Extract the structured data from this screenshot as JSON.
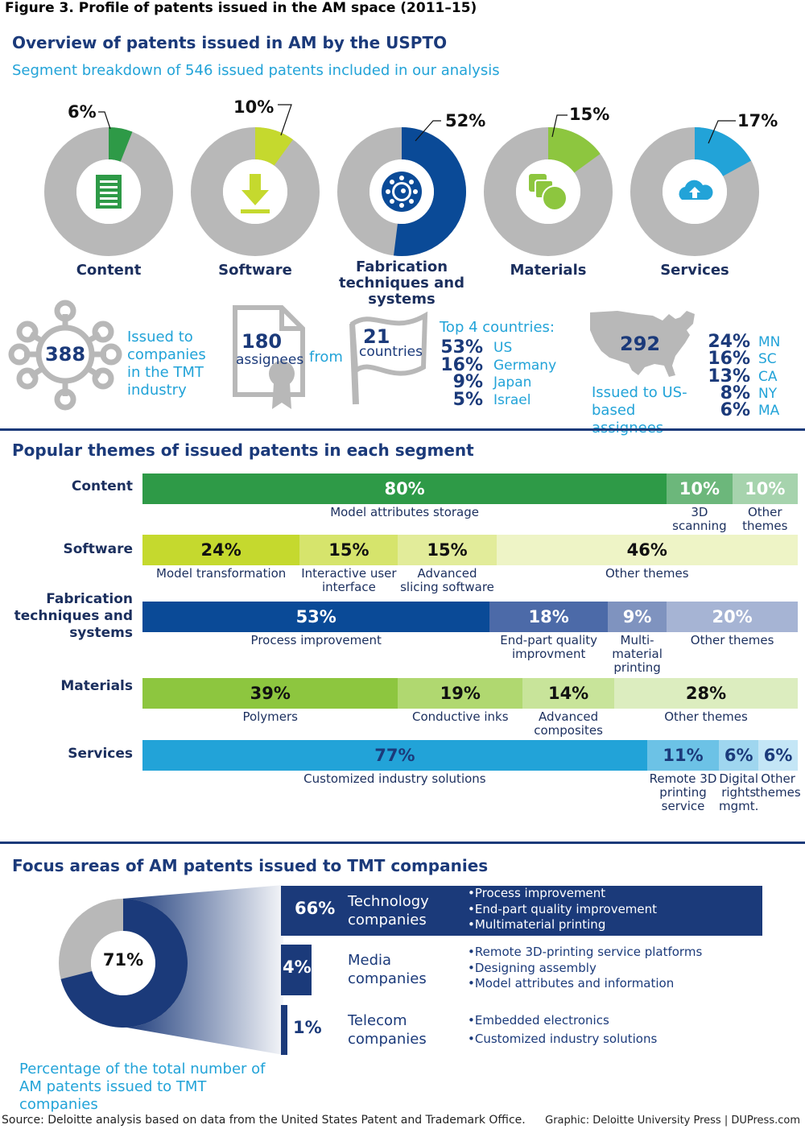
{
  "figure_title": "Figure 3. Profile of patents issued in the AM space (2011–15)",
  "overview": {
    "heading": "Overview of patents issued in AM by the USPTO",
    "subheading": "Segment breakdown of 546 issued patents included in our analysis",
    "segments": [
      {
        "label": "Content",
        "pct_text": "6%",
        "value": 6,
        "color": "#2e9a47",
        "icon": "document-icon"
      },
      {
        "label": "Software",
        "pct_text": "10%",
        "value": 10,
        "color": "#c5d92e",
        "icon": "download-icon"
      },
      {
        "label": "Fabrication techniques and systems",
        "pct_text": "52%",
        "value": 52,
        "color": "#0a4a97",
        "icon": "gear-icon"
      },
      {
        "label": "Materials",
        "pct_text": "15%",
        "value": 15,
        "color": "#8dc63f",
        "icon": "shapes-icon"
      },
      {
        "label": "Services",
        "pct_text": "17%",
        "value": 17,
        "color": "#22a3d8",
        "icon": "cloud-upload-icon"
      }
    ]
  },
  "stats": {
    "tmt_count": "388",
    "tmt_text": "Issued to companies in the TMT industry",
    "assignees_count": "180",
    "assignees_label": "assignees",
    "from_text": "from",
    "countries_count": "21",
    "countries_label": "countries",
    "top_countries_title": "Top 4 countries:",
    "top_countries": [
      {
        "pct": "53%",
        "name": "US"
      },
      {
        "pct": "16%",
        "name": "Germany"
      },
      {
        "pct": "9%",
        "name": "Japan"
      },
      {
        "pct": "5%",
        "name": "Israel"
      }
    ],
    "us_count": "292",
    "us_text": "Issued to US-based assignees",
    "top_states": [
      {
        "pct": "24%",
        "name": "MN"
      },
      {
        "pct": "16%",
        "name": "SC"
      },
      {
        "pct": "13%",
        "name": "CA"
      },
      {
        "pct": "8%",
        "name": "NY"
      },
      {
        "pct": "6%",
        "name": "MA"
      }
    ]
  },
  "themes": {
    "heading": "Popular themes of issued patents in each segment",
    "rows": [
      {
        "label": "Content",
        "items": [
          {
            "value": 80,
            "text": "80%",
            "caption": "Model attributes storage",
            "color": "#2e9a47",
            "fg": "#ffffff"
          },
          {
            "value": 10,
            "text": "10%",
            "caption": "3D scanning",
            "color": "#6cb77b",
            "fg": "#ffffff"
          },
          {
            "value": 10,
            "text": "10%",
            "caption": "Other themes",
            "color": "#a6d3ad",
            "fg": "#ffffff"
          }
        ]
      },
      {
        "label": "Software",
        "items": [
          {
            "value": 24,
            "text": "24%",
            "caption": "Model transformation",
            "color": "#c5d92e",
            "fg": "#111111"
          },
          {
            "value": 15,
            "text": "15%",
            "caption": "Interactive user interface",
            "color": "#d6e46c",
            "fg": "#111111"
          },
          {
            "value": 15,
            "text": "15%",
            "caption": "Advanced slicing software",
            "color": "#e2ec9a",
            "fg": "#111111"
          },
          {
            "value": 46,
            "text": "46%",
            "caption": "Other themes",
            "color": "#eef4c6",
            "fg": "#111111"
          }
        ]
      },
      {
        "label": "Fabrication techniques and systems",
        "items": [
          {
            "value": 53,
            "text": "53%",
            "caption": "Process improvement",
            "color": "#0a4a97",
            "fg": "#ffffff"
          },
          {
            "value": 18,
            "text": "18%",
            "caption": "End-part quality improvment",
            "color": "#4c6aa8",
            "fg": "#ffffff"
          },
          {
            "value": 9,
            "text": "9%",
            "caption": "Multi-material printing",
            "color": "#7f93bf",
            "fg": "#ffffff"
          },
          {
            "value": 20,
            "text": "20%",
            "caption": "Other themes",
            "color": "#a6b4d4",
            "fg": "#ffffff"
          }
        ]
      },
      {
        "label": "Materials",
        "items": [
          {
            "value": 39,
            "text": "39%",
            "caption": "Polymers",
            "color": "#8dc63f",
            "fg": "#111111"
          },
          {
            "value": 19,
            "text": "19%",
            "caption": "Conductive inks",
            "color": "#b0d870",
            "fg": "#111111"
          },
          {
            "value": 14,
            "text": "14%",
            "caption": "Advanced composites",
            "color": "#c8e49a",
            "fg": "#111111"
          },
          {
            "value": 28,
            "text": "28%",
            "caption": "Other themes",
            "color": "#dcedbf",
            "fg": "#111111"
          }
        ]
      },
      {
        "label": "Services",
        "items": [
          {
            "value": 77,
            "text": "77%",
            "caption": "Customized industry solutions",
            "color": "#22a3d8",
            "fg": "#1b3a7a"
          },
          {
            "value": 11,
            "text": "11%",
            "caption": "Remote 3D printing service",
            "color": "#6cc2e6",
            "fg": "#1b3a7a"
          },
          {
            "value": 6,
            "text": "6%",
            "caption": "Digital rights mgmt.",
            "color": "#9fd6ef",
            "fg": "#1b3a7a"
          },
          {
            "value": 6,
            "text": "6%",
            "caption": "Other themes",
            "color": "#c4e6f6",
            "fg": "#1b3a7a"
          }
        ]
      }
    ]
  },
  "focus": {
    "heading": "Focus areas of AM patents issued to TMT companies",
    "donut_pct": "71%",
    "donut_value": 71,
    "caption": "Percentage of the total number of AM patents issued to TMT companies",
    "groups": [
      {
        "pct": "66%",
        "value": 66,
        "name": "Technology companies",
        "bullets": [
          "Process improvement",
          "End-part quality improvement",
          "Multimaterial printing"
        ]
      },
      {
        "pct": "4%",
        "value": 4,
        "name": "Media companies",
        "bullets": [
          "Remote 3D-printing service platforms",
          "Designing assembly",
          "Model attributes and information"
        ]
      },
      {
        "pct": "1%",
        "value": 1,
        "name": "Telecom companies",
        "bullets": [
          "Embedded electronics",
          "Customized industry solutions"
        ]
      }
    ]
  },
  "chart_data": [
    {
      "type": "pie",
      "title": "Segment breakdown of 546 issued patents included in our analysis",
      "categories": [
        "Content",
        "Software",
        "Fabrication techniques and systems",
        "Materials",
        "Services"
      ],
      "values": [
        6,
        10,
        52,
        15,
        17
      ]
    },
    {
      "type": "bar",
      "title": "Popular themes of issued patents in each segment",
      "stacked": true,
      "orientation": "horizontal",
      "series": [
        {
          "name": "Content",
          "categories": [
            "Model attributes storage",
            "3D scanning",
            "Other themes"
          ],
          "values": [
            80,
            10,
            10
          ]
        },
        {
          "name": "Software",
          "categories": [
            "Model transformation",
            "Interactive user interface",
            "Advanced slicing software",
            "Other themes"
          ],
          "values": [
            24,
            15,
            15,
            46
          ]
        },
        {
          "name": "Fabrication techniques and systems",
          "categories": [
            "Process improvement",
            "End-part quality improvment",
            "Multi-material printing",
            "Other themes"
          ],
          "values": [
            53,
            18,
            9,
            20
          ]
        },
        {
          "name": "Materials",
          "categories": [
            "Polymers",
            "Conductive inks",
            "Advanced composites",
            "Other themes"
          ],
          "values": [
            39,
            19,
            14,
            28
          ]
        },
        {
          "name": "Services",
          "categories": [
            "Customized industry solutions",
            "Remote 3D printing service",
            "Digital rights mgmt.",
            "Other themes"
          ],
          "values": [
            77,
            11,
            6,
            6
          ]
        }
      ]
    },
    {
      "type": "pie",
      "title": "Percentage of the total number of AM patents issued to TMT companies",
      "values": [
        71
      ]
    },
    {
      "type": "bar",
      "title": "Focus areas of AM patents issued to TMT companies",
      "categories": [
        "Technology companies",
        "Media companies",
        "Telecom companies"
      ],
      "values": [
        66,
        4,
        1
      ]
    }
  ],
  "footer": {
    "source": "Source: Deloitte analysis based on data from the United States Patent and Trademark Office.",
    "graphic": "Graphic: Deloitte University Press  |  DUPress.com"
  }
}
